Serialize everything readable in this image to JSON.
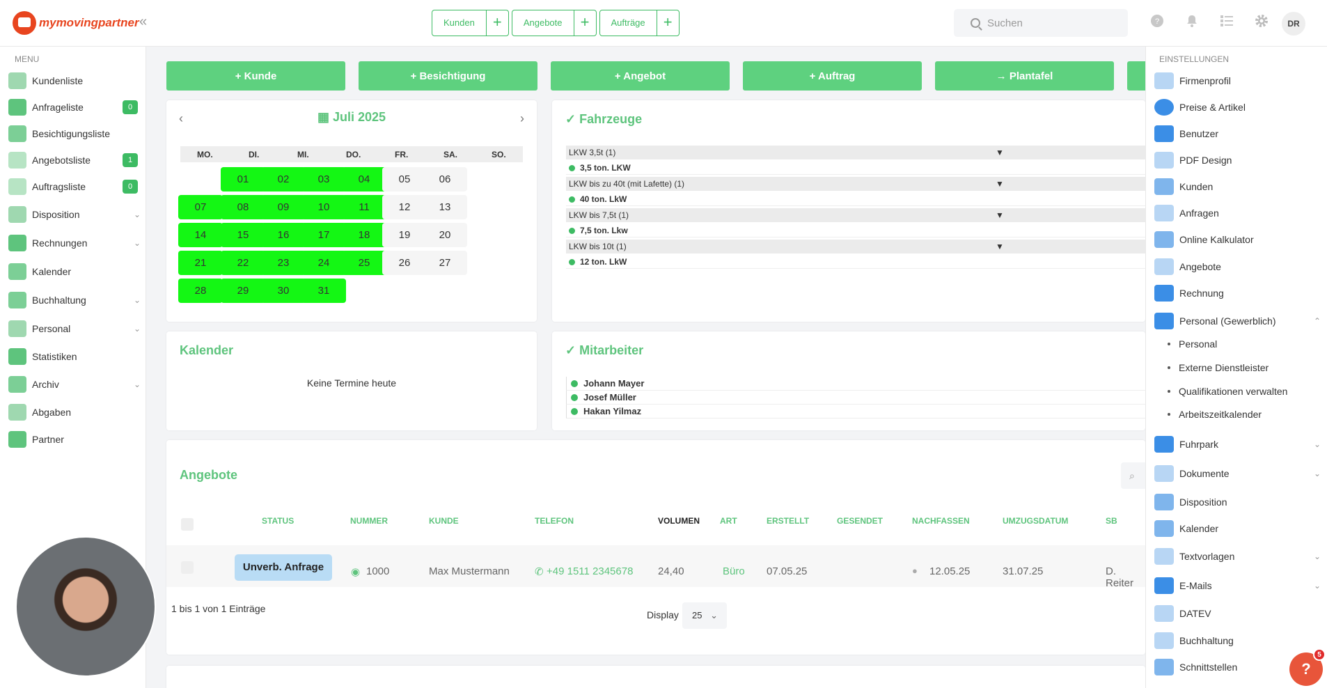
{
  "brand": {
    "name": "mymovingpartner",
    "accent": "#3dbb63",
    "action_green": "#5ed17f",
    "day_green": "#14f714"
  },
  "topbar": {
    "groups": [
      {
        "label": "Kunden"
      },
      {
        "label": "Angebote"
      },
      {
        "label": "Aufträge"
      }
    ],
    "plus": "+",
    "search_placeholder": "Suchen",
    "user_initials": "DR"
  },
  "sidebar": {
    "heading": "MENU",
    "items": [
      {
        "label": "Kundenliste",
        "icon": "customers-icon"
      },
      {
        "label": "Anfrageliste",
        "icon": "inbox-icon",
        "badge": "0"
      },
      {
        "label": "Besichtigungsliste",
        "icon": "house-icon"
      },
      {
        "label": "Angebotsliste",
        "icon": "document-icon",
        "badge": "1"
      },
      {
        "label": "Auftragsliste",
        "icon": "order-icon",
        "badge": "0"
      },
      {
        "label": "Disposition",
        "icon": "disposition-icon",
        "chevron": true
      },
      {
        "label": "Rechnungen",
        "icon": "invoice-icon",
        "chevron": true
      },
      {
        "label": "Kalender",
        "icon": "calendar-icon"
      },
      {
        "label": "Buchhaltung",
        "icon": "accounting-icon",
        "chevron": true
      },
      {
        "label": "Personal",
        "icon": "staff-icon",
        "chevron": true
      },
      {
        "label": "Statistiken",
        "icon": "stats-icon"
      },
      {
        "label": "Archiv",
        "icon": "archive-icon",
        "chevron": true
      },
      {
        "label": "Abgaben",
        "icon": "network-icon"
      },
      {
        "label": "Partner",
        "icon": "handshake-icon"
      }
    ]
  },
  "actions": [
    "+ Kunde",
    "+ Besichtigung",
    "+ Angebot",
    "+ Auftrag",
    "→ Plantafel"
  ],
  "calendar": {
    "month": "Juli 2025",
    "weekdays": [
      "MO.",
      "DI.",
      "MI.",
      "DO.",
      "FR.",
      "SA.",
      "SO."
    ],
    "weeks": [
      [
        "",
        "01",
        "02",
        "03",
        "04",
        "05",
        "06"
      ],
      [
        "07",
        "08",
        "09",
        "10",
        "11",
        "12",
        "13"
      ],
      [
        "14",
        "15",
        "16",
        "17",
        "18",
        "19",
        "20"
      ],
      [
        "21",
        "22",
        "23",
        "24",
        "25",
        "26",
        "27"
      ],
      [
        "28",
        "29",
        "30",
        "31",
        "",
        "",
        ""
      ]
    ]
  },
  "vehicles": {
    "title": "Fahrzeuge",
    "groups": [
      {
        "name": "LKW 3,5t (1)",
        "item": "3,5 ton. LKW"
      },
      {
        "name": "LKW bis zu 40t (mit Lafette) (1)",
        "item": "40 ton. LkW"
      },
      {
        "name": "LKW bis 7,5t (1)",
        "item": "7,5 ton. Lkw"
      },
      {
        "name": "LKW bis 10t (1)",
        "item": "12 ton. LkW"
      }
    ]
  },
  "kalender_card": {
    "title": "Kalender",
    "empty": "Keine Termine heute"
  },
  "staff": {
    "title": "Mitarbeiter",
    "names": [
      "Johann Mayer",
      "Josef Müller",
      "Hakan Yilmaz"
    ]
  },
  "offers": {
    "title": "Angebote",
    "columns": [
      "STATUS",
      "NUMMER",
      "KUNDE",
      "TELEFON",
      "VOLUMEN",
      "ART",
      "ERSTELLT",
      "GESENDET",
      "NACHFASSEN",
      "UMZUGSDATUM",
      "SB"
    ],
    "row": {
      "status": "Unverb. Anfrage",
      "nummer": "1000",
      "kunde": "Max Mustermann",
      "telefon": "+49 1511 2345678",
      "volumen": "24,40",
      "art": "Büro",
      "erstellt": "07.05.25",
      "nachfassen": "12.05.25",
      "umzugsdatum": "31.07.25",
      "sb": "D. Reiter"
    },
    "footer": "1 bis 1 von 1 Einträge",
    "display_label": "Display",
    "display_value": "25"
  },
  "settings": {
    "heading": "EINSTELLUNGEN",
    "items": [
      {
        "label": "Firmenprofil",
        "icon": "building-icon"
      },
      {
        "label": "Preise & Artikel",
        "icon": "euro-icon"
      },
      {
        "label": "Benutzer",
        "icon": "user-icon"
      },
      {
        "label": "PDF Design",
        "icon": "pdf-icon"
      },
      {
        "label": "Kunden",
        "icon": "customers-icon"
      },
      {
        "label": "Anfragen",
        "icon": "list-icon"
      },
      {
        "label": "Online Kalkulator",
        "icon": "calculator-icon"
      },
      {
        "label": "Angebote",
        "icon": "document-icon"
      },
      {
        "label": "Rechnung",
        "icon": "invoice-icon"
      },
      {
        "label": "Personal (Gewerblich)",
        "icon": "staff-icon",
        "expanded": true
      }
    ],
    "subitems": [
      "Personal",
      "Externe Dienstleister",
      "Qualifikationen verwalten",
      "Arbeitszeitkalender"
    ],
    "items_after": [
      {
        "label": "Fuhrpark",
        "icon": "truck-icon",
        "chevron": true
      },
      {
        "label": "Dokumente",
        "icon": "file-icon",
        "chevron": true
      },
      {
        "label": "Disposition",
        "icon": "disposition-icon"
      },
      {
        "label": "Kalender",
        "icon": "calendar-icon"
      },
      {
        "label": "Textvorlagen",
        "icon": "pdf-icon",
        "chevron": true
      },
      {
        "label": "E-Mails",
        "icon": "mail-icon",
        "chevron": true
      },
      {
        "label": "DATEV",
        "icon": "datev-icon"
      },
      {
        "label": "Buchhaltung",
        "icon": "accounting-icon"
      },
      {
        "label": "Schnittstellen",
        "icon": "plug-icon"
      }
    ]
  },
  "help": {
    "label": "?",
    "badge": "5"
  }
}
